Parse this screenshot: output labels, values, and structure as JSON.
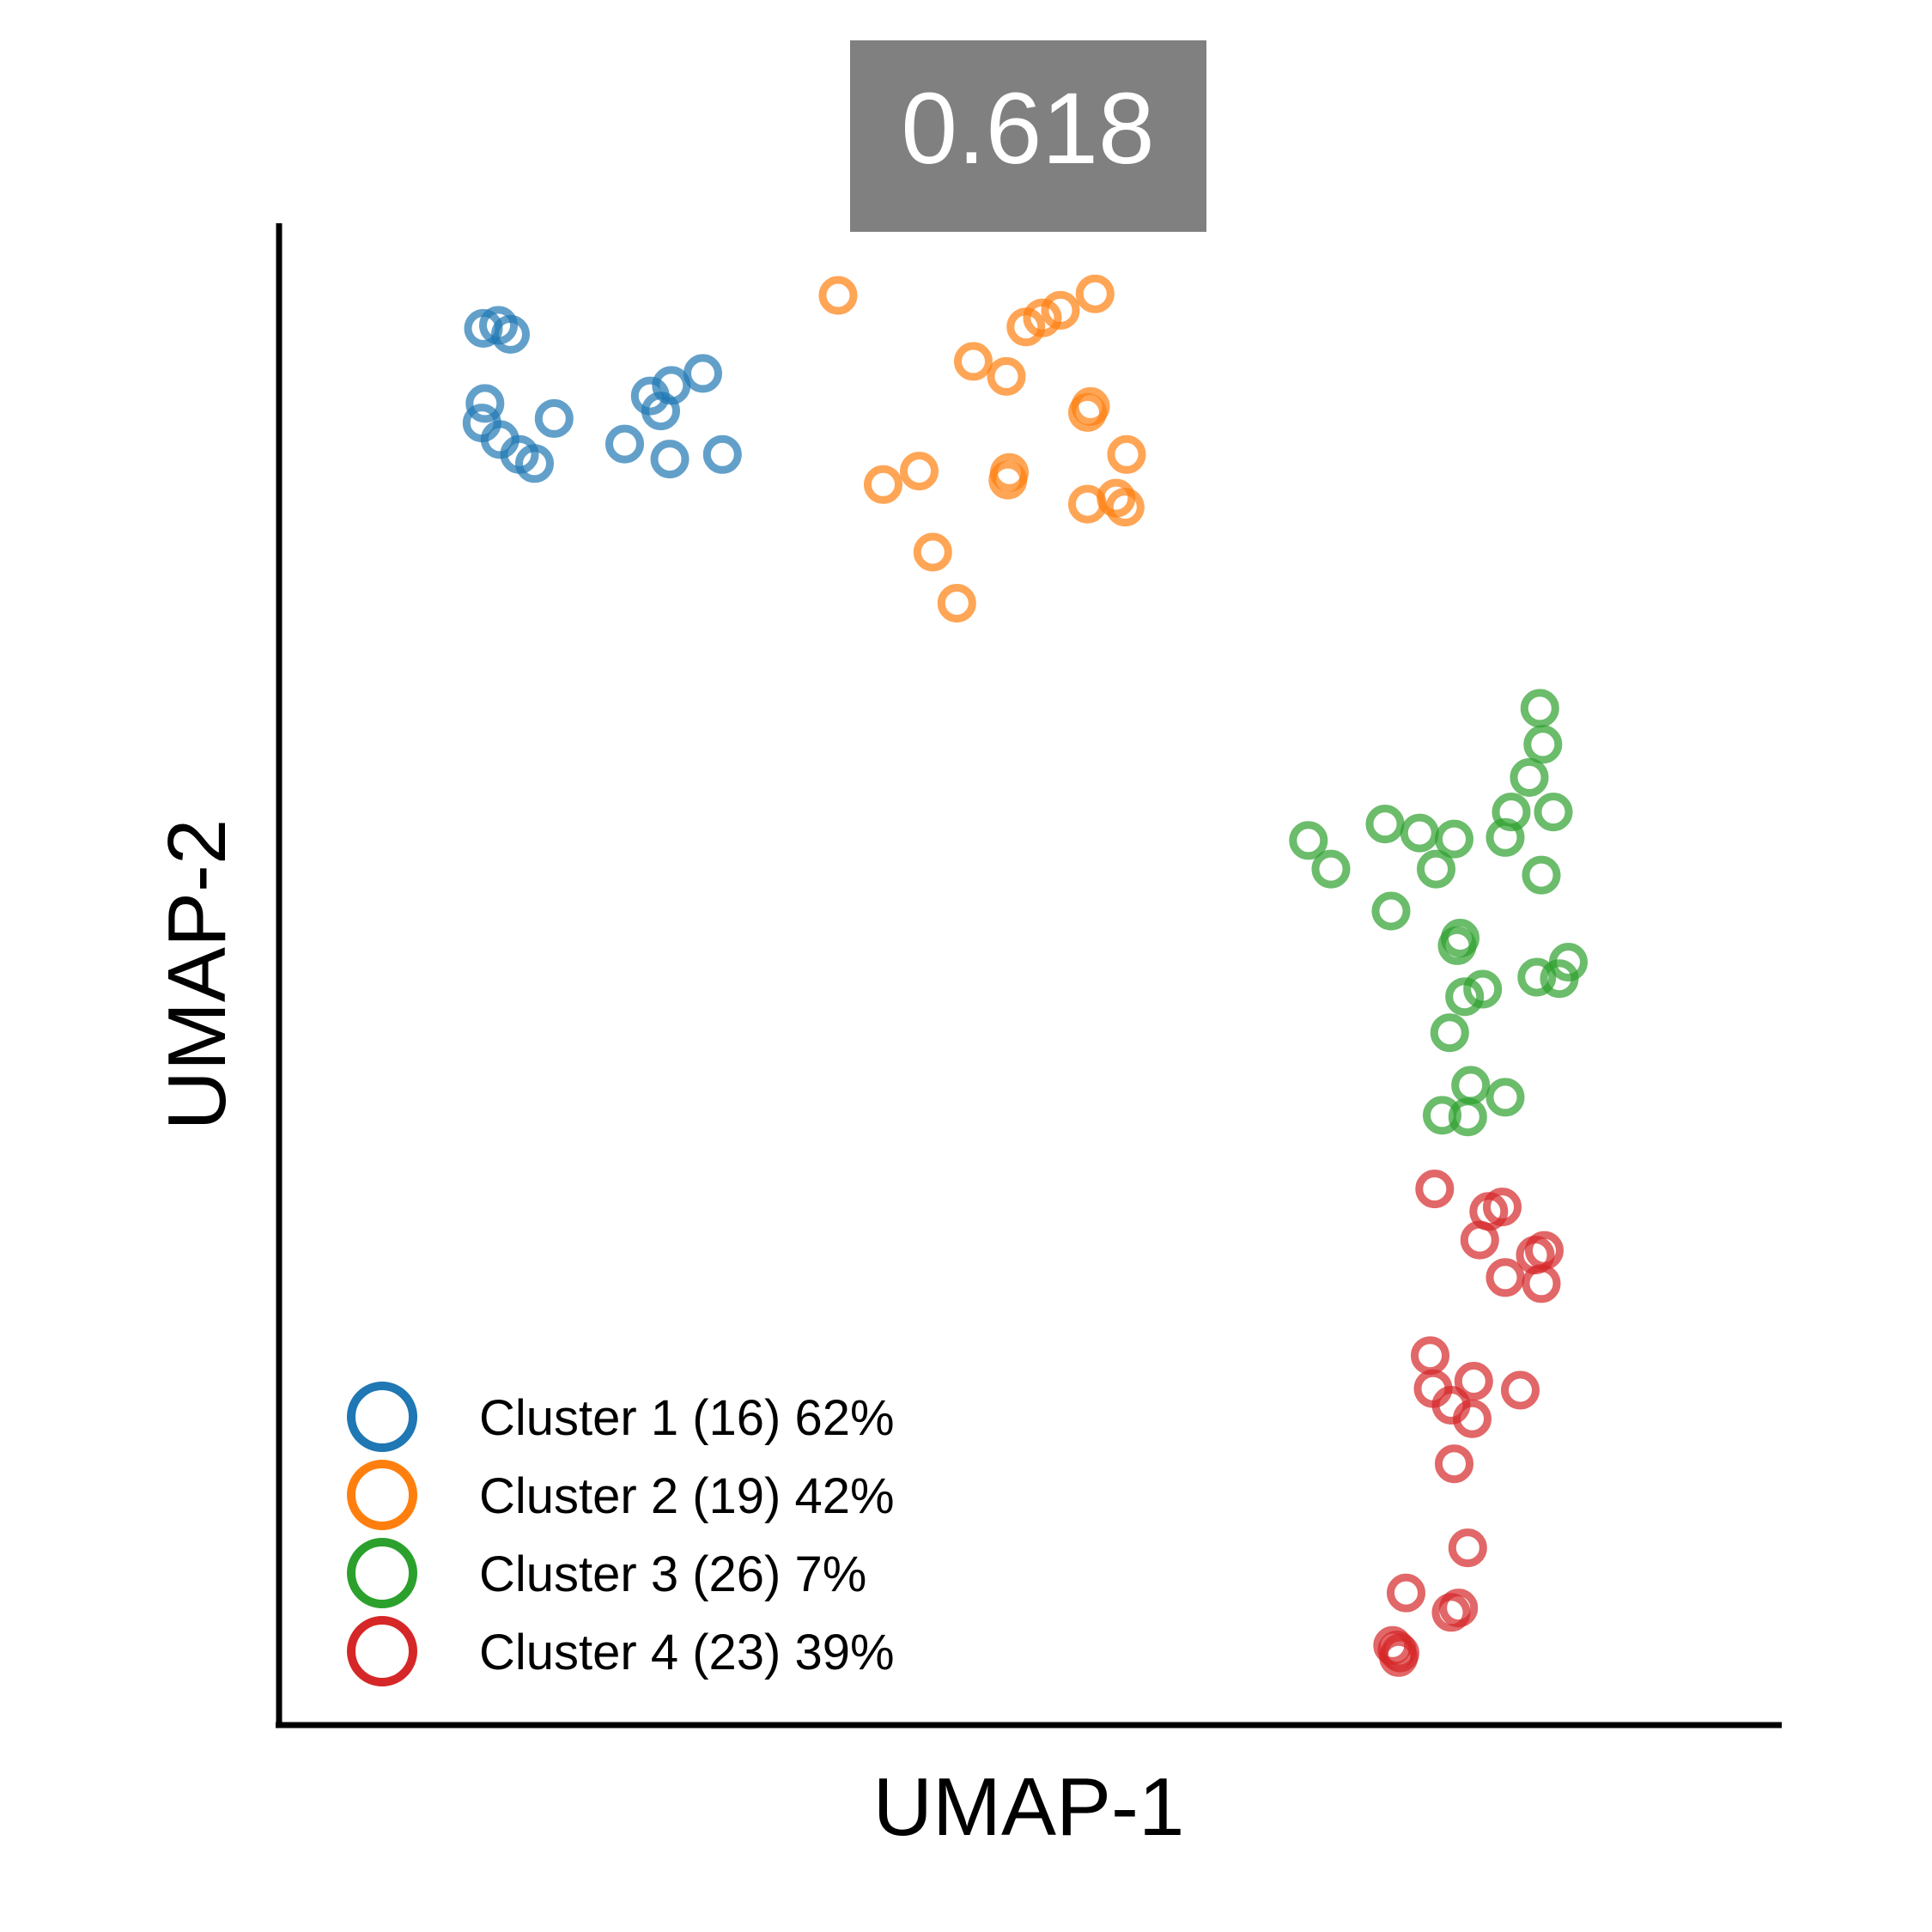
{
  "score_label": "0.618",
  "chart_data": {
    "type": "scatter",
    "xlabel": "UMAP-1",
    "ylabel": "UMAP-2",
    "xlim": [
      0,
      10
    ],
    "ylim": [
      0,
      10
    ],
    "grid": false,
    "legend_position": "bottom-left",
    "marker": "hollow-circle",
    "series": [
      {
        "name": "Cluster 1 (16) 62%",
        "color": "#1f77b4",
        "points": [
          [
            1.36,
            9.3
          ],
          [
            1.46,
            9.32
          ],
          [
            1.54,
            9.26
          ],
          [
            2.82,
            9.0
          ],
          [
            2.61,
            8.92
          ],
          [
            2.47,
            8.85
          ],
          [
            2.54,
            8.75
          ],
          [
            1.37,
            8.8
          ],
          [
            1.83,
            8.7
          ],
          [
            1.35,
            8.67
          ],
          [
            1.47,
            8.56
          ],
          [
            1.6,
            8.46
          ],
          [
            1.7,
            8.4
          ],
          [
            2.3,
            8.53
          ],
          [
            2.6,
            8.43
          ],
          [
            2.95,
            8.46
          ]
        ]
      },
      {
        "name": "Cluster 2 (19) 42%",
        "color": "#ff7f0e",
        "points": [
          [
            3.72,
            9.52
          ],
          [
            5.43,
            9.53
          ],
          [
            5.2,
            9.42
          ],
          [
            5.08,
            9.37
          ],
          [
            4.97,
            9.31
          ],
          [
            4.62,
            9.08
          ],
          [
            4.84,
            8.98
          ],
          [
            5.4,
            8.78
          ],
          [
            5.38,
            8.74
          ],
          [
            5.64,
            8.46
          ],
          [
            4.26,
            8.35
          ],
          [
            4.86,
            8.34
          ],
          [
            4.85,
            8.29
          ],
          [
            4.02,
            8.26
          ],
          [
            5.57,
            8.17
          ],
          [
            5.38,
            8.13
          ],
          [
            5.63,
            8.11
          ],
          [
            4.35,
            7.81
          ],
          [
            4.51,
            7.47
          ]
        ]
      },
      {
        "name": "Cluster 3 (26) 7%",
        "color": "#2ca02c",
        "points": [
          [
            8.39,
            6.77
          ],
          [
            8.41,
            6.53
          ],
          [
            8.32,
            6.31
          ],
          [
            8.2,
            6.08
          ],
          [
            8.48,
            6.08
          ],
          [
            6.85,
            5.89
          ],
          [
            7.36,
            6.0
          ],
          [
            7.59,
            5.94
          ],
          [
            7.82,
            5.9
          ],
          [
            8.16,
            5.91
          ],
          [
            7.0,
            5.7
          ],
          [
            7.7,
            5.7
          ],
          [
            8.4,
            5.66
          ],
          [
            7.4,
            5.42
          ],
          [
            7.86,
            5.24
          ],
          [
            7.84,
            5.19
          ],
          [
            8.58,
            5.08
          ],
          [
            8.52,
            4.97
          ],
          [
            8.37,
            4.98
          ],
          [
            8.01,
            4.9
          ],
          [
            7.89,
            4.85
          ],
          [
            7.79,
            4.61
          ],
          [
            7.93,
            4.26
          ],
          [
            8.16,
            4.18
          ],
          [
            7.74,
            4.06
          ],
          [
            7.91,
            4.05
          ]
        ]
      },
      {
        "name": "Cluster 4 (23) 39%",
        "color": "#d62728",
        "points": [
          [
            7.69,
            3.57
          ],
          [
            8.14,
            3.45
          ],
          [
            8.05,
            3.42
          ],
          [
            7.99,
            3.23
          ],
          [
            8.42,
            3.16
          ],
          [
            8.36,
            3.13
          ],
          [
            8.4,
            2.94
          ],
          [
            8.16,
            2.98
          ],
          [
            7.66,
            2.46
          ],
          [
            7.95,
            2.29
          ],
          [
            7.68,
            2.24
          ],
          [
            8.26,
            2.23
          ],
          [
            7.8,
            2.13
          ],
          [
            7.94,
            2.04
          ],
          [
            7.82,
            1.74
          ],
          [
            7.91,
            1.18
          ],
          [
            7.5,
            0.88
          ],
          [
            7.85,
            0.78
          ],
          [
            7.8,
            0.75
          ],
          [
            7.41,
            0.53
          ],
          [
            7.44,
            0.5
          ],
          [
            7.46,
            0.48
          ],
          [
            7.45,
            0.45
          ]
        ]
      }
    ]
  }
}
